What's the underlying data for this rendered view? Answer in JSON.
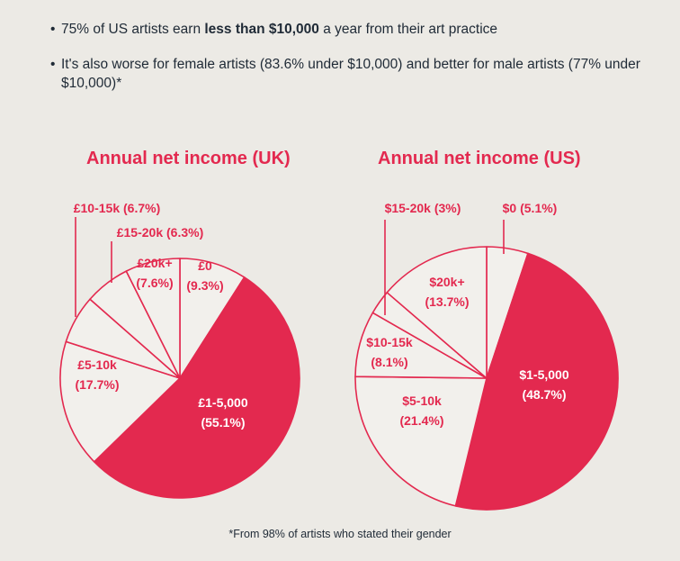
{
  "bullets": [
    {
      "pre": "75% of US artists earn ",
      "bold": "less than $10,000",
      "post": " a year from their art practice"
    },
    {
      "pre": "It's also worse for female artists (83.6% under $10,000) and better for male artists (77% under $10,000)*",
      "bold": "",
      "post": ""
    }
  ],
  "colors": {
    "accent": "#e3294f",
    "background": "#eceae5",
    "slice_fill_light": "#f2f0ec",
    "text_dark": "#1f2a36"
  },
  "footnote": "*From 98% of artists who stated their gender",
  "chart_data": [
    {
      "type": "pie",
      "title": "Annual net income (UK)",
      "slices": [
        {
          "label": "£0",
          "value": 9.3
        },
        {
          "label": "£1-5,000",
          "value": 55.1,
          "highlight": true
        },
        {
          "label": "£5-10k",
          "value": 17.7
        },
        {
          "label": "£10-15k",
          "value": 6.7
        },
        {
          "label": "£15-20k",
          "value": 6.3
        },
        {
          "label": "£20k+",
          "value": 7.6
        }
      ],
      "value_labels": {
        "£0": "(9.3%)",
        "£1-5,000": "(55.1%)",
        "£5-10k": "(17.7%)",
        "£10-15k": "(6.7%)",
        "£15-20k": "(6.3%)",
        "£20k+": "(7.6%)"
      }
    },
    {
      "type": "pie",
      "title": "Annual net income (US)",
      "slices": [
        {
          "label": "$0",
          "value": 5.1
        },
        {
          "label": "$1-5,000",
          "value": 48.7,
          "highlight": true
        },
        {
          "label": "$5-10k",
          "value": 21.4
        },
        {
          "label": "$10-15k",
          "value": 8.1
        },
        {
          "label": "$15-20k",
          "value": 3
        },
        {
          "label": "$20k+",
          "value": 13.7
        }
      ],
      "value_labels": {
        "$0": "(5.1%)",
        "$1-5,000": "(48.7%)",
        "$5-10k": "(21.4%)",
        "$10-15k": "(8.1%)",
        "$15-20k": "(3%)",
        "$20k+": "(13.7%)"
      }
    }
  ]
}
